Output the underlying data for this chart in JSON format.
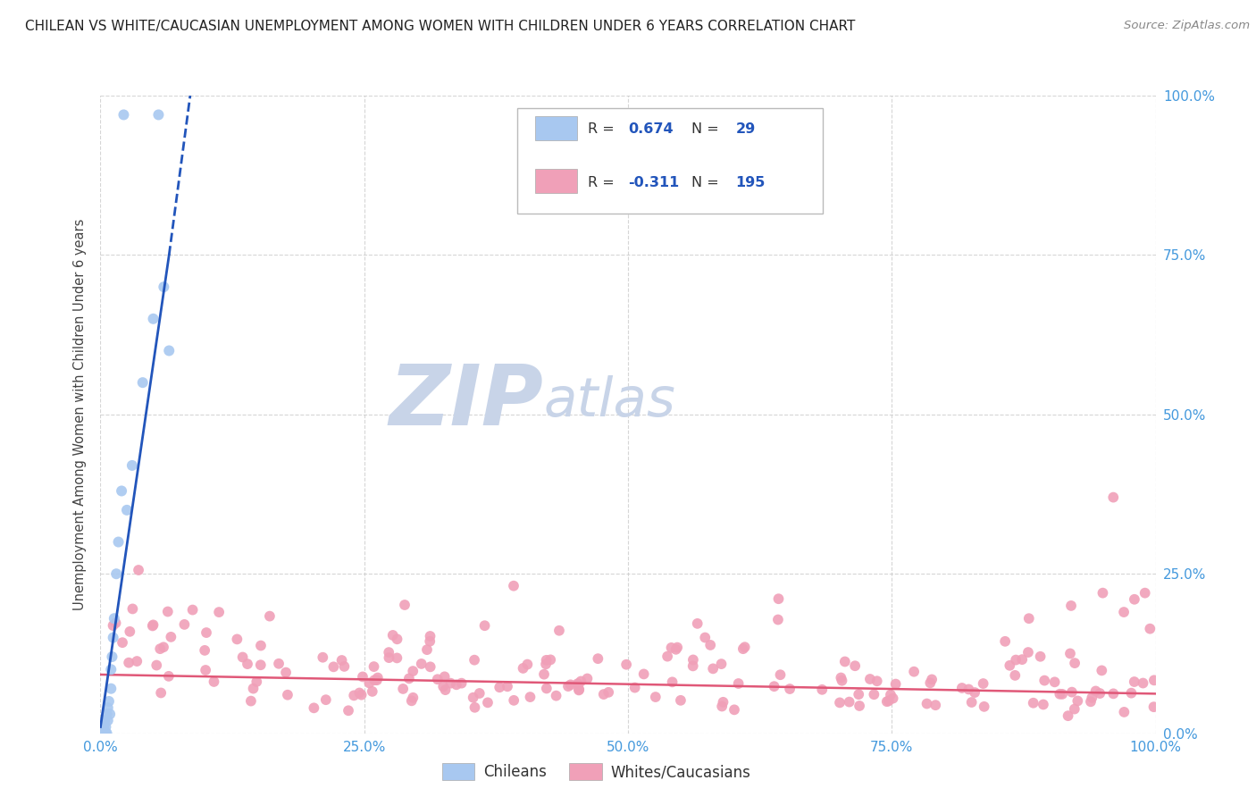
{
  "title": "CHILEAN VS WHITE/CAUCASIAN UNEMPLOYMENT AMONG WOMEN WITH CHILDREN UNDER 6 YEARS CORRELATION CHART",
  "source": "Source: ZipAtlas.com",
  "ylabel": "Unemployment Among Women with Children Under 6 years",
  "blue_color": "#a8c8f0",
  "blue_line_color": "#2255bb",
  "pink_color": "#f0a0b8",
  "pink_line_color": "#e05878",
  "grid_color": "#cccccc",
  "background_color": "#ffffff",
  "tick_color": "#4499dd",
  "title_color": "#222222",
  "source_color": "#888888",
  "legend_R_blue": "0.674",
  "legend_N_blue": "29",
  "legend_R_pink": "-0.311",
  "legend_N_pink": "195",
  "watermark_ZIP_color": "#c8d4e8",
  "watermark_atlas_color": "#c8d4e8"
}
